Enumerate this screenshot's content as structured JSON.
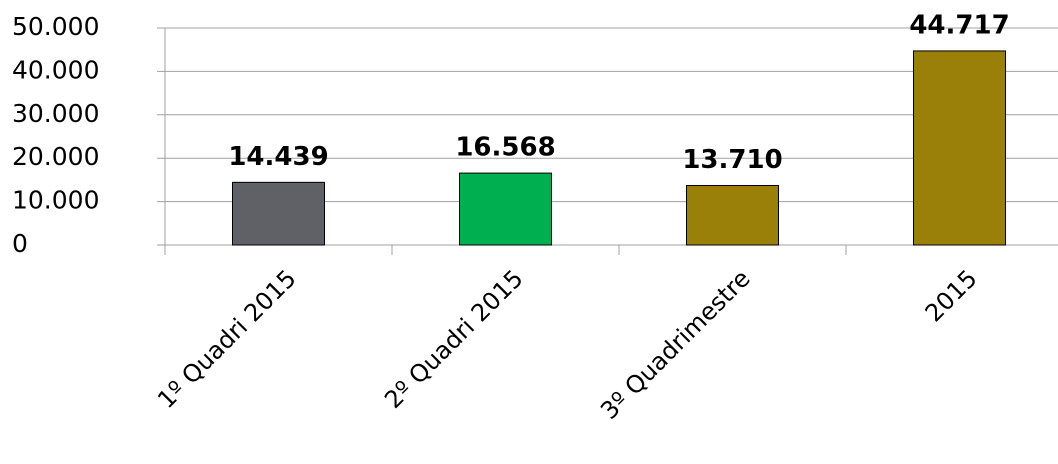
{
  "chart_data": {
    "type": "bar",
    "categories": [
      "1º Quadri 2015",
      "2º Quadri 2015",
      "3º Quadrimestre",
      "2015"
    ],
    "values": [
      14439,
      16568,
      13710,
      44717
    ],
    "value_labels": [
      "14.439",
      "16.568",
      "13.710",
      "44.717"
    ],
    "colors": [
      "#5f6166",
      "#00b050",
      "#9a8009",
      "#9a8009"
    ],
    "ylim": [
      0,
      50000
    ],
    "yticks": [
      0,
      {
        "value": 10000,
        "label": "10.000"
      },
      {
        "value": 20000,
        "label": "20.000"
      },
      {
        "value": 30000,
        "label": "30.000"
      },
      {
        "value": 40000,
        "label": "40.000"
      },
      {
        "value": 50000,
        "label": "50.000"
      }
    ],
    "grid": true
  }
}
